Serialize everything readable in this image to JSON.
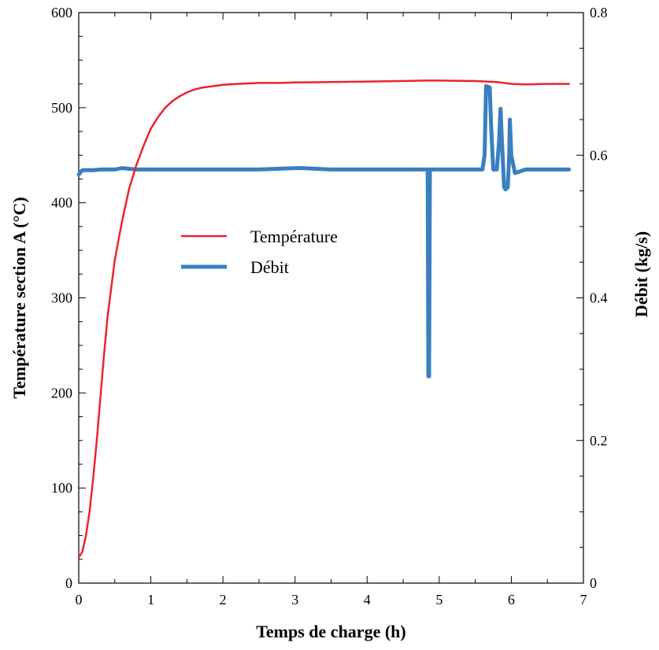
{
  "chart_data": {
    "type": "line",
    "xlabel": "Temps de charge (h)",
    "ylabel_left": "Température section A (°C)",
    "ylabel_right": "Débit (kg/s)",
    "xlim": [
      0,
      7
    ],
    "ylim_left": [
      0,
      600
    ],
    "ylim_right": [
      0,
      0.8
    ],
    "xticks": [
      0,
      1,
      2,
      3,
      4,
      5,
      6,
      7
    ],
    "yticks_left": [
      0,
      100,
      200,
      300,
      400,
      500,
      600
    ],
    "yticks_right": [
      0,
      0.2,
      0.4,
      0.6,
      0.8
    ],
    "ytick_labels_right": [
      "0",
      "0.2",
      "0.4",
      "0.6",
      "0.8"
    ],
    "grid": false,
    "legend_position": "center-left",
    "series": [
      {
        "name": "Température",
        "axis": "left",
        "color": "#e8262b",
        "x": [
          0,
          0.05,
          0.1,
          0.15,
          0.2,
          0.25,
          0.3,
          0.35,
          0.4,
          0.5,
          0.6,
          0.7,
          0.8,
          0.9,
          1.0,
          1.1,
          1.2,
          1.3,
          1.4,
          1.5,
          1.6,
          1.7,
          1.8,
          1.9,
          2.0,
          2.2,
          2.5,
          2.8,
          3.0,
          3.5,
          4.0,
          4.5,
          4.8,
          5.0,
          5.5,
          5.8,
          6.0,
          6.2,
          6.5,
          6.8
        ],
        "y": [
          27,
          33,
          50,
          75,
          110,
          150,
          195,
          240,
          280,
          340,
          380,
          415,
          440,
          460,
          478,
          490,
          500,
          507,
          512,
          516,
          519,
          521,
          522,
          523,
          524,
          525,
          526,
          526,
          526.5,
          527,
          527.5,
          528,
          528.5,
          528.5,
          528,
          527,
          525,
          524.5,
          525,
          525
        ],
        "y_scale_note": "approx"
      },
      {
        "name": "Débit",
        "axis": "right",
        "color": "#3a7fc0",
        "x": [
          0,
          0.05,
          0.2,
          0.3,
          0.5,
          0.6,
          0.8,
          1.0,
          1.5,
          2.0,
          2.5,
          3.0,
          3.1,
          3.5,
          4.0,
          4.5,
          4.8,
          4.84,
          4.85,
          4.86,
          4.87,
          5.0,
          5.5,
          5.6,
          5.63,
          5.65,
          5.7,
          5.72,
          5.75,
          5.8,
          5.83,
          5.85,
          5.87,
          5.9,
          5.92,
          5.95,
          5.97,
          5.98,
          6.0,
          6.05,
          6.2,
          6.5,
          6.8
        ],
        "y": [
          0.573,
          0.579,
          0.579,
          0.58,
          0.58,
          0.582,
          0.58,
          0.58,
          0.58,
          0.58,
          0.58,
          0.582,
          0.582,
          0.58,
          0.58,
          0.58,
          0.58,
          0.58,
          0.29,
          0.29,
          0.58,
          0.58,
          0.58,
          0.58,
          0.6,
          0.697,
          0.695,
          0.64,
          0.58,
          0.58,
          0.62,
          0.665,
          0.62,
          0.555,
          0.552,
          0.555,
          0.6,
          0.65,
          0.6,
          0.575,
          0.58,
          0.58,
          0.58
        ]
      }
    ]
  }
}
